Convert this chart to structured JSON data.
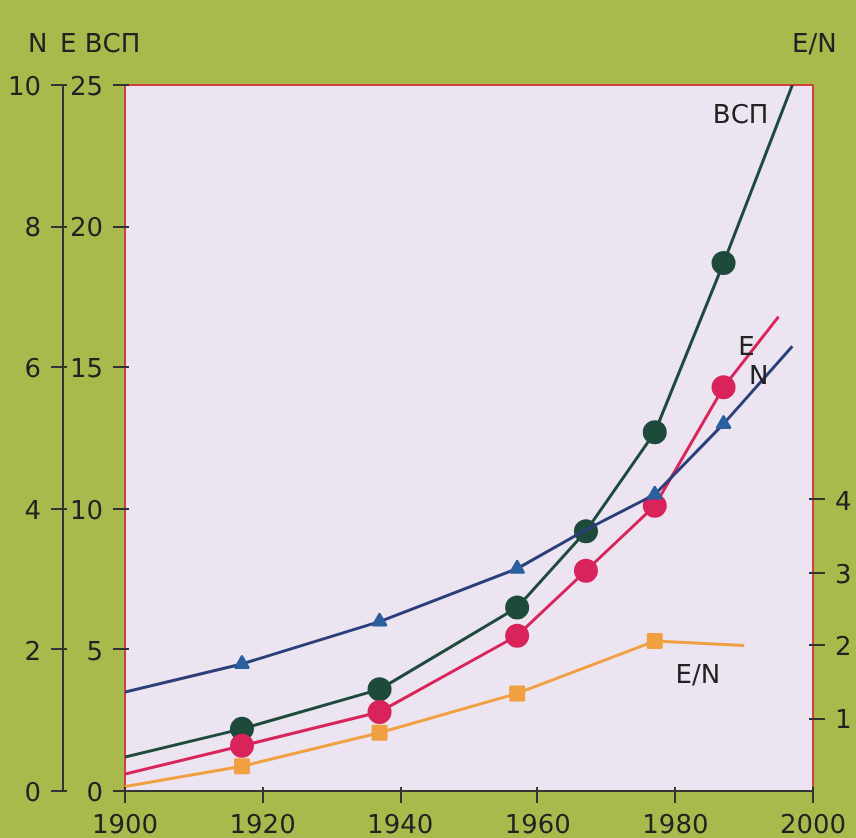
{
  "chart_data": {
    "type": "line",
    "ylabel": "E ВСП",
    "y2label": "N",
    "y3label": "E/N",
    "xlim": [
      1900,
      2000
    ],
    "xticks": [
      1900,
      1920,
      1940,
      1960,
      1980,
      2000
    ],
    "ylim": [
      0,
      25
    ],
    "yticks": [
      0,
      5,
      10,
      15,
      20,
      25
    ],
    "y2lim": [
      0,
      10
    ],
    "y2ticks": [
      0,
      2,
      4,
      6,
      8,
      10
    ],
    "y3lim": [
      0,
      9.7
    ],
    "y3ticks": [
      1,
      2,
      3,
      4
    ],
    "grid": false,
    "series": [
      {
        "name": "ВСП",
        "axis": "y",
        "color": "#1e4a3c",
        "x": [
          1900,
          1917,
          1937,
          1957,
          1967,
          1977,
          1987,
          1997
        ],
        "values": [
          1.2,
          2.2,
          3.6,
          6.5,
          9.2,
          12.7,
          18.7,
          25
        ]
      },
      {
        "type": "scatter",
        "axis": "y",
        "color": "#1e4a3c",
        "marker": "circle",
        "x": [
          1917,
          1937,
          1957,
          1967,
          1977,
          1987
        ],
        "values": [
          2.2,
          3.6,
          6.5,
          9.2,
          12.7,
          18.7
        ]
      },
      {
        "name": "E",
        "axis": "y",
        "color": "#d8245a",
        "x": [
          1900,
          1917,
          1937,
          1957,
          1967,
          1977,
          1987,
          1995
        ],
        "values": [
          0.6,
          1.6,
          2.8,
          5.5,
          7.8,
          10.1,
          14.3,
          16.8
        ]
      },
      {
        "type": "scatter",
        "axis": "y",
        "color": "#d8245a",
        "marker": "circle",
        "x": [
          1917,
          1937,
          1957,
          1967,
          1977,
          1987
        ],
        "values": [
          1.6,
          2.8,
          5.5,
          7.8,
          10.1,
          14.3
        ]
      },
      {
        "name": "N",
        "axis": "y2",
        "color": "#2a3f7a",
        "x": [
          1900,
          1917,
          1937,
          1957,
          1967,
          1977,
          1987,
          1997
        ],
        "values": [
          1.4,
          1.8,
          2.4,
          3.15,
          3.7,
          4.2,
          5.2,
          6.3
        ]
      },
      {
        "type": "scatter",
        "axis": "y2",
        "color": "#2a5fa0",
        "marker": "triangle",
        "x": [
          1917,
          1937,
          1957,
          1977,
          1987
        ],
        "values": [
          1.8,
          2.4,
          3.15,
          4.2,
          5.2
        ]
      },
      {
        "name": "E/N",
        "axis": "y3",
        "color": "#f0a040",
        "x": [
          1900,
          1917,
          1937,
          1957,
          1977,
          1990
        ],
        "values": [
          0.06,
          0.34,
          0.8,
          1.34,
          2.06,
          2.0
        ]
      },
      {
        "type": "scatter",
        "axis": "y3",
        "color": "#f0a040",
        "marker": "square",
        "x": [
          1917,
          1937,
          1957,
          1977
        ],
        "values": [
          0.34,
          0.8,
          1.34,
          2.06
        ]
      }
    ]
  }
}
